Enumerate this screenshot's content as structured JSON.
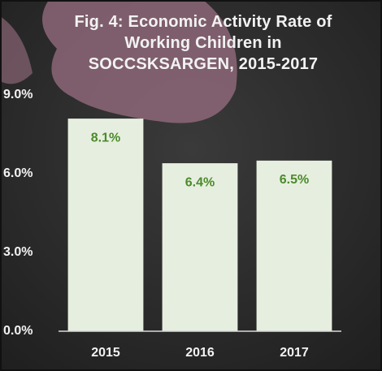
{
  "chart_data": {
    "type": "bar",
    "title": "Fig. 4: Economic Activity Rate of Working Children in SOCCSKSARGEN, 2015-2017",
    "categories": [
      "2015",
      "2016",
      "2017"
    ],
    "values": [
      8.1,
      6.4,
      6.5
    ],
    "value_labels": [
      "8.1%",
      "6.4%",
      "6.5%"
    ],
    "color": "#e6efdf",
    "ylim": [
      0,
      9
    ],
    "yticks": [
      {
        "value": 0,
        "label": "0.0%"
      },
      {
        "value": 3,
        "label": "3.0%"
      },
      {
        "value": 6,
        "label": "6.0%"
      },
      {
        "value": 9,
        "label": "9.0%"
      }
    ],
    "grid": false
  }
}
